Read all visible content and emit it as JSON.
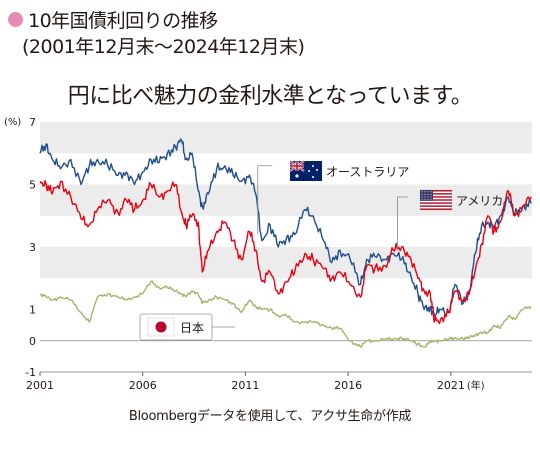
{
  "header": {
    "title": "10年国債利回りの推移",
    "subtitle": "(2001年12月末～2024年12月末)",
    "headline": "円に比べ魅力の金利水準となっています。"
  },
  "caption": "Bloombergデータを使用して、アクサ生命が作成",
  "colors": {
    "australia": "#1f4e8c",
    "usa": "#e60012",
    "japan": "#9cb86b",
    "band": "#ececec",
    "title_dot": "#e68bb4"
  },
  "chart_data": {
    "type": "line",
    "y_unit": "(%)",
    "x_unit": "(年)",
    "ylim": [
      -1,
      7
    ],
    "xlim": [
      2001,
      2024.95
    ],
    "yticks": [
      -1,
      0,
      1,
      3,
      5,
      7
    ],
    "xticks": [
      2001,
      2006,
      2011,
      2016,
      2021
    ],
    "xtick_labels": [
      "2001",
      "2006",
      "2011",
      "2016",
      "2021"
    ],
    "grid": "alternating horizontal bands",
    "legend": "inline labels",
    "series": [
      {
        "name": "オーストラリア",
        "flag": "australia-flag",
        "x": [
          2001.0,
          2001.3,
          2001.6,
          2002.0,
          2002.5,
          2003.0,
          2003.4,
          2003.8,
          2004.3,
          2004.8,
          2005.2,
          2005.6,
          2006.0,
          2006.4,
          2006.8,
          2007.2,
          2007.6,
          2007.9,
          2008.1,
          2008.4,
          2008.7,
          2008.9,
          2009.2,
          2009.6,
          2010.0,
          2010.4,
          2010.8,
          2011.2,
          2011.5,
          2011.8,
          2012.2,
          2012.6,
          2013.0,
          2013.4,
          2013.9,
          2014.3,
          2014.8,
          2015.2,
          2015.6,
          2016.1,
          2016.6,
          2016.9,
          2017.3,
          2017.8,
          2018.2,
          2018.6,
          2019.0,
          2019.4,
          2019.7,
          2020.0,
          2020.2,
          2020.5,
          2020.9,
          2021.2,
          2021.6,
          2021.9,
          2022.2,
          2022.5,
          2022.8,
          2023.1,
          2023.4,
          2023.8,
          2024.1,
          2024.5,
          2024.9
        ],
        "values": [
          6.0,
          6.3,
          5.8,
          5.5,
          5.8,
          5.0,
          5.6,
          5.8,
          5.6,
          5.3,
          5.4,
          5.0,
          5.4,
          5.8,
          5.7,
          6.0,
          6.2,
          6.4,
          5.8,
          6.0,
          4.8,
          4.3,
          4.7,
          5.5,
          5.6,
          5.3,
          5.1,
          5.3,
          4.7,
          3.2,
          3.7,
          3.0,
          3.3,
          3.4,
          4.2,
          4.0,
          3.2,
          2.5,
          2.9,
          2.6,
          1.8,
          2.6,
          2.7,
          2.6,
          2.8,
          2.6,
          2.2,
          1.5,
          1.0,
          1.1,
          0.8,
          1.0,
          0.9,
          1.8,
          1.2,
          1.6,
          2.8,
          3.7,
          3.8,
          3.6,
          4.0,
          4.6,
          4.0,
          4.3,
          4.4
        ]
      },
      {
        "name": "アメリカ",
        "flag": "usa-flag",
        "x": [
          2001.0,
          2001.3,
          2001.6,
          2002.0,
          2002.5,
          2003.0,
          2003.4,
          2003.8,
          2004.3,
          2004.8,
          2005.2,
          2005.6,
          2006.0,
          2006.4,
          2006.8,
          2007.2,
          2007.6,
          2007.9,
          2008.1,
          2008.4,
          2008.7,
          2008.9,
          2009.2,
          2009.6,
          2010.0,
          2010.4,
          2010.8,
          2011.2,
          2011.5,
          2011.8,
          2012.2,
          2012.6,
          2013.0,
          2013.4,
          2013.9,
          2014.3,
          2014.8,
          2015.2,
          2015.6,
          2016.1,
          2016.6,
          2016.9,
          2017.3,
          2017.8,
          2018.2,
          2018.6,
          2019.0,
          2019.4,
          2019.7,
          2020.0,
          2020.2,
          2020.5,
          2020.9,
          2021.2,
          2021.6,
          2021.9,
          2022.2,
          2022.5,
          2022.8,
          2023.1,
          2023.4,
          2023.8,
          2024.1,
          2024.5,
          2024.9
        ],
        "values": [
          5.1,
          5.0,
          4.7,
          5.1,
          4.6,
          3.9,
          3.7,
          4.2,
          4.5,
          4.1,
          4.5,
          4.2,
          4.5,
          5.0,
          4.6,
          4.8,
          5.0,
          4.1,
          3.7,
          4.0,
          3.8,
          2.2,
          2.9,
          3.5,
          3.8,
          3.2,
          2.6,
          3.5,
          2.9,
          1.9,
          2.2,
          1.5,
          1.9,
          2.2,
          2.8,
          2.6,
          2.3,
          2.0,
          2.2,
          1.8,
          1.4,
          2.4,
          2.3,
          2.4,
          2.9,
          3.0,
          2.7,
          2.0,
          1.6,
          1.5,
          0.6,
          0.7,
          0.9,
          1.6,
          1.3,
          1.5,
          2.3,
          3.1,
          4.0,
          3.5,
          3.8,
          4.8,
          4.0,
          4.3,
          4.6
        ]
      },
      {
        "name": "日本",
        "flag": "japan-flag",
        "x": [
          2001.0,
          2001.3,
          2001.6,
          2002.0,
          2002.5,
          2003.0,
          2003.4,
          2003.8,
          2004.3,
          2004.8,
          2005.2,
          2005.6,
          2006.0,
          2006.4,
          2006.8,
          2007.2,
          2007.6,
          2007.9,
          2008.1,
          2008.4,
          2008.7,
          2008.9,
          2009.2,
          2009.6,
          2010.0,
          2010.4,
          2010.8,
          2011.2,
          2011.5,
          2011.8,
          2012.2,
          2012.6,
          2013.0,
          2013.4,
          2013.9,
          2014.3,
          2014.8,
          2015.2,
          2015.6,
          2016.1,
          2016.6,
          2016.9,
          2017.3,
          2017.8,
          2018.2,
          2018.6,
          2019.0,
          2019.4,
          2019.7,
          2020.0,
          2020.2,
          2020.5,
          2020.9,
          2021.2,
          2021.6,
          2021.9,
          2022.2,
          2022.5,
          2022.8,
          2023.1,
          2023.4,
          2023.8,
          2024.1,
          2024.5,
          2024.9
        ],
        "values": [
          1.5,
          1.4,
          1.3,
          1.4,
          1.3,
          0.9,
          0.6,
          1.4,
          1.5,
          1.4,
          1.3,
          1.4,
          1.5,
          1.9,
          1.7,
          1.7,
          1.6,
          1.5,
          1.4,
          1.6,
          1.5,
          1.2,
          1.3,
          1.4,
          1.3,
          1.2,
          0.9,
          1.3,
          1.1,
          1.0,
          1.0,
          0.8,
          0.8,
          0.6,
          0.6,
          0.6,
          0.5,
          0.4,
          0.4,
          0.0,
          -0.2,
          0.0,
          0.0,
          0.05,
          0.05,
          0.1,
          0.0,
          -0.1,
          -0.2,
          -0.05,
          0.0,
          0.0,
          0.05,
          0.1,
          0.05,
          0.1,
          0.2,
          0.25,
          0.25,
          0.5,
          0.4,
          0.8,
          0.7,
          1.0,
          1.1
        ]
      }
    ]
  }
}
